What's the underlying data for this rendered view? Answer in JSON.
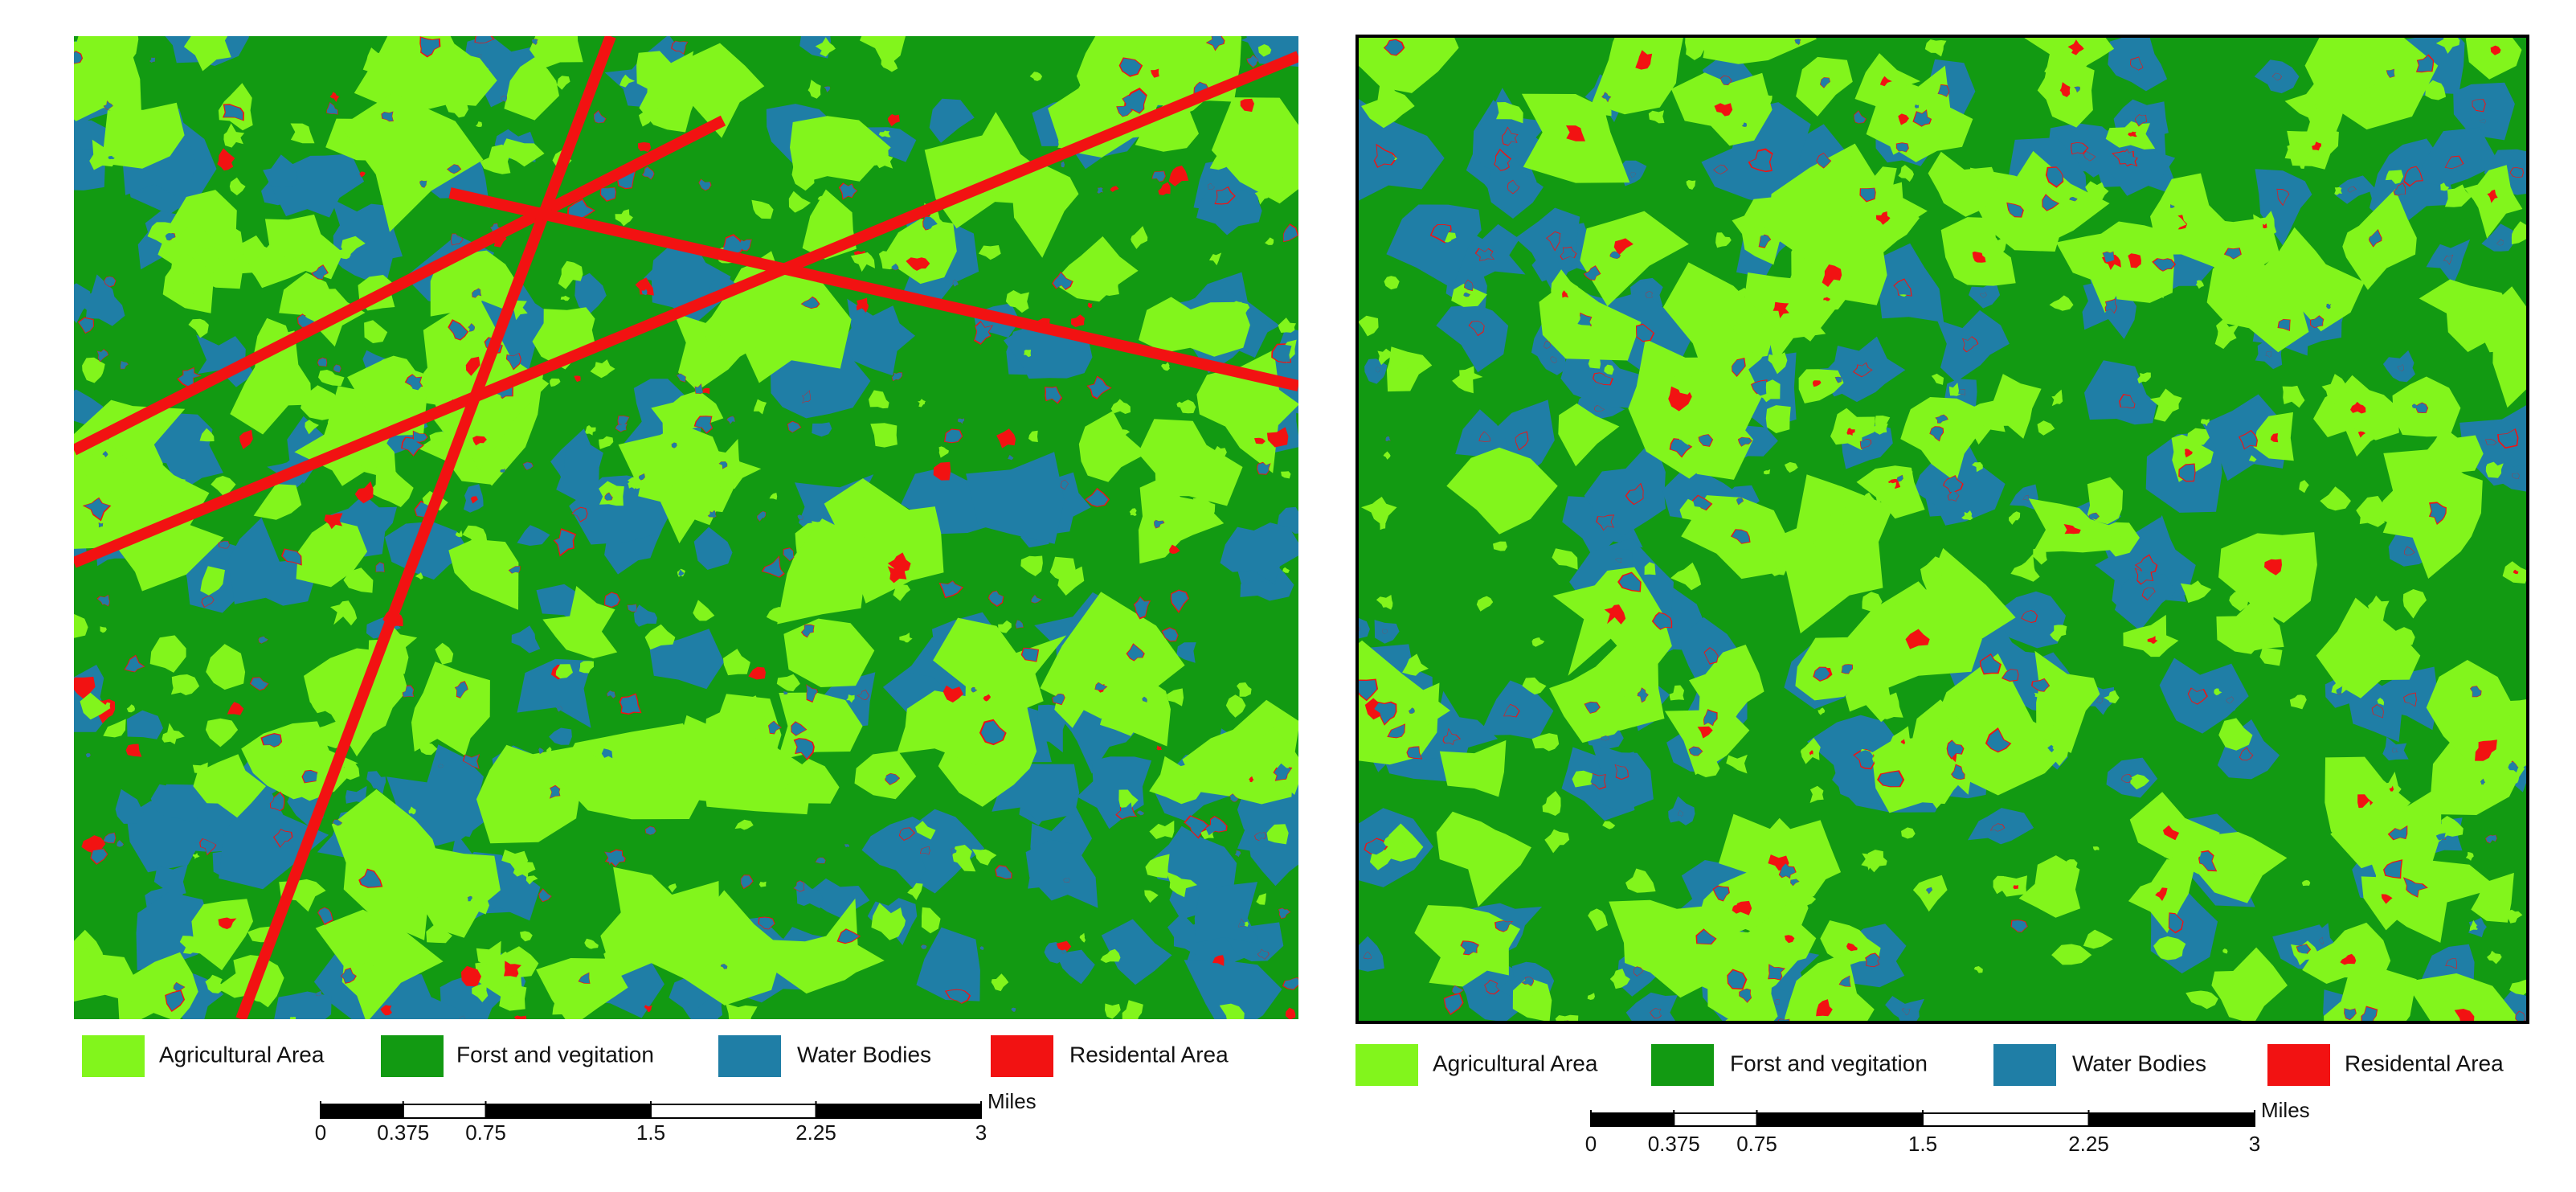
{
  "maps": [
    {
      "legend": [
        {
          "label": "Agricultural Area",
          "color": "#82f51c"
        },
        {
          "label": "Forst and vegitation",
          "color": "#129a12"
        },
        {
          "label": "Water Bodies",
          "color": "#1f7ea6"
        },
        {
          "label": "Residental Area",
          "color": "#f21212"
        }
      ],
      "scale_bar": {
        "unit": "Miles",
        "ticks": [
          0,
          0.375,
          0.75,
          1.5,
          2.25,
          3
        ]
      }
    },
    {
      "legend": [
        {
          "label": "Agricultural Area",
          "color": "#82f51c"
        },
        {
          "label": "Forst and vegitation",
          "color": "#129a12"
        },
        {
          "label": "Water Bodies",
          "color": "#1f7ea6"
        },
        {
          "label": "Residental Area",
          "color": "#f21212"
        }
      ],
      "scale_bar": {
        "unit": "Miles",
        "ticks": [
          0,
          0.375,
          0.75,
          1.5,
          2.25,
          3
        ]
      }
    }
  ]
}
